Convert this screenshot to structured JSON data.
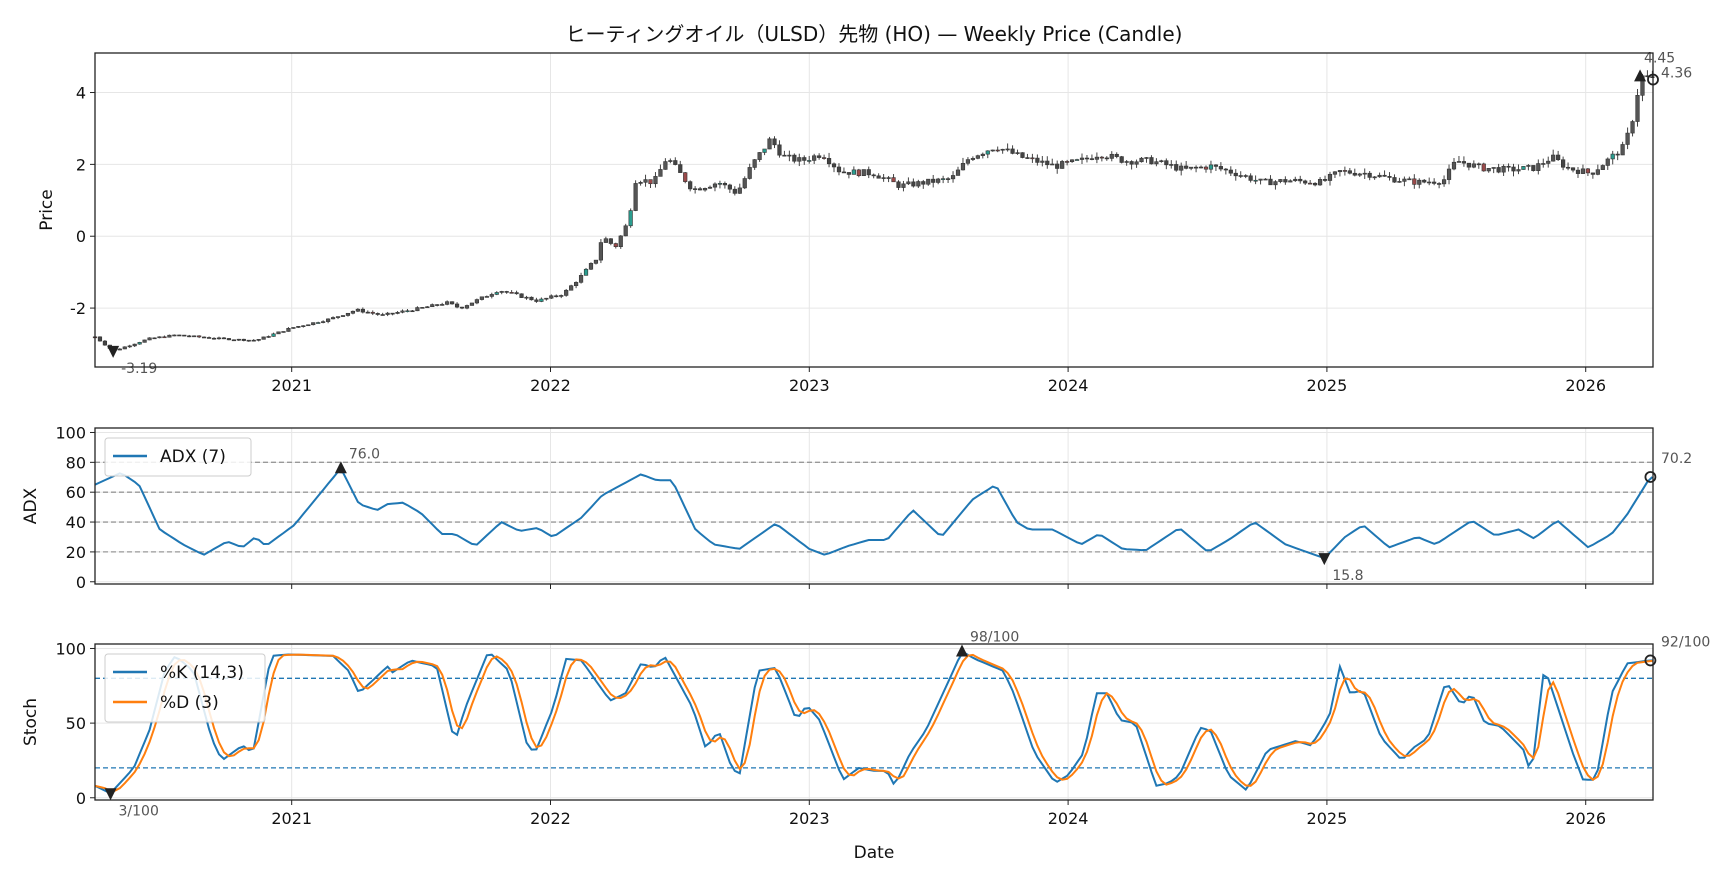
{
  "chart_data": [
    {
      "type": "candlestick",
      "title": "ヒーティングオイル（ULSD）先物 (HO) — Weekly Price (Candle)",
      "xlabel": "",
      "ylabel": "Price",
      "xlim": [
        2020.24,
        2026.26
      ],
      "ylim": [
        -3.64,
        5.1
      ],
      "yticks": [
        -2,
        0,
        2,
        4
      ],
      "xticks": [
        2021,
        2022,
        2023,
        2024,
        2025,
        2026
      ],
      "xtick_labels": [
        "2021",
        "2022",
        "2023",
        "2024",
        "2025",
        "2026"
      ],
      "grid": true,
      "close_keypoints": [
        [
          2020.24,
          -2.8
        ],
        [
          2020.31,
          -3.19
        ],
        [
          2020.45,
          -2.85
        ],
        [
          2020.55,
          -2.75
        ],
        [
          2020.72,
          -2.85
        ],
        [
          2020.86,
          -2.9
        ],
        [
          2021.0,
          -2.55
        ],
        [
          2021.15,
          -2.3
        ],
        [
          2021.25,
          -2.05
        ],
        [
          2021.35,
          -2.2
        ],
        [
          2021.5,
          -2.0
        ],
        [
          2021.6,
          -1.85
        ],
        [
          2021.65,
          -2.0
        ],
        [
          2021.8,
          -1.5
        ],
        [
          2021.95,
          -1.8
        ],
        [
          2022.05,
          -1.6
        ],
        [
          2022.12,
          -1.1
        ],
        [
          2022.18,
          -0.6
        ],
        [
          2022.2,
          0.0
        ],
        [
          2022.25,
          -0.3
        ],
        [
          2022.3,
          0.4
        ],
        [
          2022.33,
          1.6
        ],
        [
          2022.4,
          1.5
        ],
        [
          2022.45,
          2.2
        ],
        [
          2022.55,
          1.3
        ],
        [
          2022.65,
          1.5
        ],
        [
          2022.72,
          1.2
        ],
        [
          2022.78,
          2.0
        ],
        [
          2022.85,
          2.7
        ],
        [
          2022.9,
          2.2
        ],
        [
          2022.97,
          2.1
        ],
        [
          2023.05,
          2.3
        ],
        [
          2023.12,
          1.8
        ],
        [
          2023.25,
          1.75
        ],
        [
          2023.35,
          1.4
        ],
        [
          2023.45,
          1.5
        ],
        [
          2023.55,
          1.6
        ],
        [
          2023.62,
          2.2
        ],
        [
          2023.72,
          2.5
        ],
        [
          2023.82,
          2.2
        ],
        [
          2023.95,
          1.95
        ],
        [
          2024.05,
          2.1
        ],
        [
          2024.12,
          2.3
        ],
        [
          2024.22,
          2.1
        ],
        [
          2024.32,
          2.1
        ],
        [
          2024.45,
          1.85
        ],
        [
          2024.55,
          1.95
        ],
        [
          2024.65,
          1.75
        ],
        [
          2024.75,
          1.5
        ],
        [
          2024.85,
          1.55
        ],
        [
          2024.98,
          1.5
        ],
        [
          2025.05,
          1.8
        ],
        [
          2025.15,
          1.75
        ],
        [
          2025.25,
          1.6
        ],
        [
          2025.35,
          1.5
        ],
        [
          2025.45,
          1.55
        ],
        [
          2025.5,
          2.1
        ],
        [
          2025.6,
          1.9
        ],
        [
          2025.7,
          1.85
        ],
        [
          2025.8,
          1.9
        ],
        [
          2025.87,
          2.2
        ],
        [
          2025.93,
          1.9
        ],
        [
          2026.02,
          1.75
        ],
        [
          2026.1,
          2.2
        ],
        [
          2026.15,
          2.5
        ],
        [
          2026.19,
          3.5
        ],
        [
          2026.21,
          4.45
        ],
        [
          2026.26,
          4.36
        ]
      ],
      "annotations": [
        {
          "label": "-3.19",
          "x": 2020.31,
          "y": -3.19,
          "marker": "down"
        },
        {
          "label": "4.45",
          "x": 2026.21,
          "y": 4.45,
          "marker": "up"
        },
        {
          "label": "4.36",
          "x": 2026.26,
          "y": 4.36,
          "marker": "circle"
        }
      ]
    },
    {
      "type": "line",
      "ylabel": "ADX",
      "xlim": [
        2020.24,
        2026.26
      ],
      "ylim": [
        -1.5,
        103
      ],
      "yticks": [
        0,
        20,
        40,
        60,
        80,
        100
      ],
      "hlines": [
        20,
        40,
        60,
        80
      ],
      "legend": {
        "placement": "top-left",
        "entries": [
          "ADX (7)"
        ]
      },
      "series": [
        {
          "name": "ADX (7)",
          "color": "#1f77b4",
          "points": [
            [
              2020.24,
              65
            ],
            [
              2020.34,
              73
            ],
            [
              2020.41,
              65
            ],
            [
              2020.49,
              35
            ],
            [
              2020.58,
              25
            ],
            [
              2020.66,
              18
            ],
            [
              2020.75,
              27
            ],
            [
              2020.81,
              23
            ],
            [
              2020.86,
              30
            ],
            [
              2020.9,
              24
            ],
            [
              2021.01,
              38
            ],
            [
              2021.19,
              76
            ],
            [
              2021.26,
              52
            ],
            [
              2021.33,
              48
            ],
            [
              2021.37,
              52
            ],
            [
              2021.43,
              53
            ],
            [
              2021.5,
              46
            ],
            [
              2021.58,
              32
            ],
            [
              2021.63,
              32
            ],
            [
              2021.71,
              24
            ],
            [
              2021.81,
              40
            ],
            [
              2021.88,
              34
            ],
            [
              2021.95,
              36
            ],
            [
              2022.01,
              30
            ],
            [
              2022.12,
              43
            ],
            [
              2022.2,
              58
            ],
            [
              2022.35,
              72
            ],
            [
              2022.41,
              68
            ],
            [
              2022.47,
              68
            ],
            [
              2022.56,
              35
            ],
            [
              2022.63,
              25
            ],
            [
              2022.73,
              22
            ],
            [
              2022.87,
              39
            ],
            [
              2023.0,
              22
            ],
            [
              2023.06,
              18
            ],
            [
              2023.15,
              24
            ],
            [
              2023.23,
              28
            ],
            [
              2023.3,
              28
            ],
            [
              2023.4,
              48
            ],
            [
              2023.51,
              30
            ],
            [
              2023.63,
              55
            ],
            [
              2023.72,
              65
            ],
            [
              2023.8,
              40
            ],
            [
              2023.85,
              35
            ],
            [
              2023.94,
              35
            ],
            [
              2024.05,
              25
            ],
            [
              2024.12,
              32
            ],
            [
              2024.21,
              22
            ],
            [
              2024.3,
              21
            ],
            [
              2024.43,
              36
            ],
            [
              2024.54,
              20
            ],
            [
              2024.62,
              28
            ],
            [
              2024.72,
              40
            ],
            [
              2024.84,
              25
            ],
            [
              2024.99,
              15.8
            ],
            [
              2025.07,
              30
            ],
            [
              2025.14,
              38
            ],
            [
              2025.24,
              23
            ],
            [
              2025.35,
              30
            ],
            [
              2025.42,
              25
            ],
            [
              2025.56,
              41
            ],
            [
              2025.65,
              31
            ],
            [
              2025.74,
              35
            ],
            [
              2025.8,
              29
            ],
            [
              2025.89,
              41
            ],
            [
              2026.01,
              23
            ],
            [
              2026.1,
              32
            ],
            [
              2026.16,
              45
            ],
            [
              2026.25,
              70.2
            ]
          ]
        }
      ],
      "annotations": [
        {
          "label": "76.0",
          "x": 2021.19,
          "y": 76,
          "marker": "up"
        },
        {
          "label": "15.8",
          "x": 2024.99,
          "y": 15.8,
          "marker": "down"
        },
        {
          "label": "70.2",
          "x": 2026.25,
          "y": 70.2,
          "marker": "circle"
        }
      ]
    },
    {
      "type": "line",
      "xlabel": "Date",
      "ylabel": "Stoch",
      "xlim": [
        2020.24,
        2026.26
      ],
      "ylim": [
        -1.5,
        103
      ],
      "yticks": [
        0,
        50,
        100
      ],
      "hlines": [
        20,
        80
      ],
      "xticks": [
        2021,
        2022,
        2023,
        2024,
        2025,
        2026
      ],
      "xtick_labels": [
        "2021",
        "2022",
        "2023",
        "2024",
        "2025",
        "2026"
      ],
      "legend": {
        "placement": "top-left",
        "entries": [
          "%K (14,3)",
          "%D (3)"
        ]
      },
      "series": [
        {
          "name": "%K (14,3)",
          "color": "#1f77b4",
          "points": [
            [
              2020.24,
              8
            ],
            [
              2020.3,
              3
            ],
            [
              2020.39,
              20
            ],
            [
              2020.45,
              45
            ],
            [
              2020.51,
              85
            ],
            [
              2020.55,
              95
            ],
            [
              2020.62,
              85
            ],
            [
              2020.69,
              40
            ],
            [
              2020.73,
              25
            ],
            [
              2020.81,
              35
            ],
            [
              2020.85,
              30
            ],
            [
              2020.92,
              95
            ],
            [
              2020.99,
              96
            ],
            [
              2021.16,
              95
            ],
            [
              2021.22,
              85
            ],
            [
              2021.26,
              70
            ],
            [
              2021.37,
              88
            ],
            [
              2021.39,
              84
            ],
            [
              2021.46,
              92
            ],
            [
              2021.56,
              88
            ],
            [
              2021.63,
              37
            ],
            [
              2021.67,
              60
            ],
            [
              2021.76,
              98
            ],
            [
              2021.84,
              85
            ],
            [
              2021.91,
              35
            ],
            [
              2021.94,
              30
            ],
            [
              2022.01,
              60
            ],
            [
              2022.06,
              93
            ],
            [
              2022.12,
              92
            ],
            [
              2022.23,
              65
            ],
            [
              2022.29,
              70
            ],
            [
              2022.35,
              90
            ],
            [
              2022.4,
              87
            ],
            [
              2022.44,
              95
            ],
            [
              2022.55,
              60
            ],
            [
              2022.6,
              33
            ],
            [
              2022.65,
              45
            ],
            [
              2022.7,
              20
            ],
            [
              2022.73,
              15
            ],
            [
              2022.8,
              85
            ],
            [
              2022.87,
              87
            ],
            [
              2022.91,
              70
            ],
            [
              2022.95,
              52
            ],
            [
              2022.99,
              62
            ],
            [
              2023.04,
              52
            ],
            [
              2023.13,
              12
            ],
            [
              2023.19,
              20
            ],
            [
              2023.25,
              18
            ],
            [
              2023.3,
              18
            ],
            [
              2023.33,
              8
            ],
            [
              2023.39,
              30
            ],
            [
              2023.45,
              45
            ],
            [
              2023.53,
              75
            ],
            [
              2023.59,
              98
            ],
            [
              2023.64,
              93
            ],
            [
              2023.75,
              85
            ],
            [
              2023.79,
              70
            ],
            [
              2023.87,
              30
            ],
            [
              2023.95,
              10
            ],
            [
              2024.0,
              15
            ],
            [
              2024.06,
              30
            ],
            [
              2024.11,
              70
            ],
            [
              2024.15,
              70
            ],
            [
              2024.2,
              52
            ],
            [
              2024.26,
              50
            ],
            [
              2024.34,
              8
            ],
            [
              2024.39,
              10
            ],
            [
              2024.43,
              15
            ],
            [
              2024.51,
              47
            ],
            [
              2024.55,
              45
            ],
            [
              2024.62,
              15
            ],
            [
              2024.69,
              5
            ],
            [
              2024.77,
              32
            ],
            [
              2024.88,
              38
            ],
            [
              2024.94,
              35
            ],
            [
              2025.01,
              55
            ],
            [
              2025.05,
              88
            ],
            [
              2025.09,
              70
            ],
            [
              2025.14,
              72
            ],
            [
              2025.21,
              40
            ],
            [
              2025.29,
              25
            ],
            [
              2025.33,
              33
            ],
            [
              2025.39,
              40
            ],
            [
              2025.46,
              78
            ],
            [
              2025.52,
              62
            ],
            [
              2025.56,
              70
            ],
            [
              2025.61,
              50
            ],
            [
              2025.67,
              48
            ],
            [
              2025.76,
              32
            ],
            [
              2025.79,
              15
            ],
            [
              2025.84,
              88
            ],
            [
              2025.95,
              30
            ],
            [
              2025.99,
              12
            ],
            [
              2026.04,
              12
            ],
            [
              2026.1,
              70
            ],
            [
              2026.16,
              90
            ],
            [
              2026.25,
              92
            ]
          ]
        },
        {
          "name": "%D (3)",
          "color": "#ff7f0e",
          "derived": "3-period moving average of %K"
        }
      ],
      "annotations": [
        {
          "label": "98/100",
          "x": 2023.59,
          "y": 98,
          "marker": "up"
        },
        {
          "label": "3/100",
          "x": 2020.3,
          "y": 3,
          "marker": "down"
        },
        {
          "label": "92/100",
          "x": 2026.25,
          "y": 92,
          "marker": "circle"
        }
      ]
    }
  ]
}
